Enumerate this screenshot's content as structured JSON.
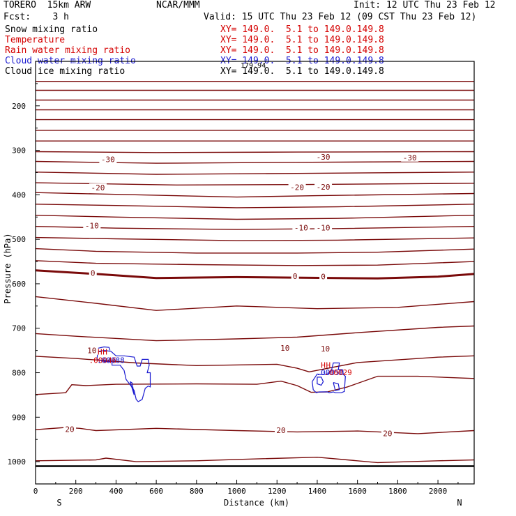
{
  "header": {
    "model": "TORERO  15km ARW",
    "center": "NCAR/MMM",
    "init": "Init: 12 UTC Thu 23 Feb 12",
    "fcst": "Fcst:    3 h",
    "valid": "Valid: 15 UTC Thu 23 Feb 12 (09 CST Thu 23 Feb 12)"
  },
  "fields": [
    {
      "name": "Snow mixing ratio",
      "xy": "XY= 149.0.  5.1 to 149.0.149.8",
      "color": "#000000"
    },
    {
      "name": "Temperature",
      "xy": "XY= 149.0.  5.1 to 149.0.149.8",
      "color": "#d40000"
    },
    {
      "name": "Rain water mixing ratio",
      "xy": "XY= 149.0.  5.1 to 149.0.149.8",
      "color": "#d40000"
    },
    {
      "name": "Cloud water mixing ratio",
      "xy": "XY= 149.0.  5.1 to 149.0.149.8",
      "color": "#1a1ad0"
    },
    {
      "name": "Cloud ice mixing ratio",
      "xy": "XY= 149.0.  5.1 to 149.0.149.8",
      "color": "#000000"
    }
  ],
  "colors": {
    "temperature": "#7a0a0a",
    "cloud_water": "#1a1ad0",
    "rain_water": "#d40000",
    "axes": "#000000"
  },
  "chart_data": {
    "type": "line",
    "xlabel": "Distance (km)",
    "ylabel": "Pressure (hPa)",
    "xlim": [
      0,
      2180
    ],
    "ylim": [
      1050,
      100
    ],
    "x_ticks": [
      0,
      200,
      400,
      600,
      800,
      1000,
      1200,
      1400,
      1600,
      1800,
      2000
    ],
    "y_ticks": [
      200,
      300,
      400,
      500,
      600,
      700,
      800,
      900,
      1000
    ],
    "x_end_labels": {
      "left": "S",
      "right": "N"
    },
    "overlap_text": "179.94",
    "isotherm_interval_c": 2,
    "isotherm_labels": [
      {
        "text": "-30",
        "x": 360,
        "p": 320
      },
      {
        "text": "-30",
        "x": 1430,
        "p": 315
      },
      {
        "text": "-30",
        "x": 1860,
        "p": 316
      },
      {
        "text": "-20",
        "x": 310,
        "p": 384
      },
      {
        "text": "-20",
        "x": 1300,
        "p": 383
      },
      {
        "text": "-20",
        "x": 1430,
        "p": 382
      },
      {
        "text": "-10",
        "x": 280,
        "p": 469
      },
      {
        "text": "-10",
        "x": 1320,
        "p": 474
      },
      {
        "text": "-10",
        "x": 1430,
        "p": 474
      },
      {
        "text": "0",
        "x": 285,
        "p": 576
      },
      {
        "text": "0",
        "x": 1290,
        "p": 583
      },
      {
        "text": "0",
        "x": 1430,
        "p": 584
      },
      {
        "text": "10",
        "x": 280,
        "p": 750
      },
      {
        "text": "10",
        "x": 1240,
        "p": 744
      },
      {
        "text": "10",
        "x": 1440,
        "p": 746
      },
      {
        "text": "20",
        "x": 170,
        "p": 927
      },
      {
        "text": "20",
        "x": 1220,
        "p": 929
      },
      {
        "text": "20",
        "x": 1750,
        "p": 936
      }
    ],
    "isotherms": [
      {
        "x": [
          0,
          2180
        ],
        "p": [
          145,
          145
        ]
      },
      {
        "x": [
          0,
          2180
        ],
        "p": [
          165,
          165
        ]
      },
      {
        "x": [
          0,
          2180
        ],
        "p": [
          187,
          187
        ]
      },
      {
        "x": [
          0,
          2180
        ],
        "p": [
          209,
          209
        ]
      },
      {
        "x": [
          0,
          2180
        ],
        "p": [
          231,
          231
        ]
      },
      {
        "x": [
          0,
          2180
        ],
        "p": [
          255,
          255
        ]
      },
      {
        "x": [
          0,
          2180
        ],
        "p": [
          279,
          279
        ]
      },
      {
        "x": [
          0,
          600,
          1300,
          2180
        ],
        "p": [
          303,
          305,
          304,
          303
        ]
      },
      {
        "x": [
          0,
          600,
          1300,
          2180
        ],
        "p": [
          325,
          329,
          327,
          325
        ]
      },
      {
        "x": [
          0,
          600,
          1300,
          2180
        ],
        "p": [
          349,
          354,
          352,
          349
        ]
      },
      {
        "x": [
          0,
          700,
          1300,
          2180
        ],
        "p": [
          373,
          378,
          377,
          374
        ]
      },
      {
        "x": [
          0,
          300,
          1000,
          1400,
          2180
        ],
        "p": [
          395,
          398,
          405,
          402,
          397
        ]
      },
      {
        "x": [
          0,
          400,
          1000,
          1500,
          2180
        ],
        "p": [
          421,
          424,
          429,
          427,
          421
        ]
      },
      {
        "x": [
          0,
          400,
          1000,
          1500,
          2180
        ],
        "p": [
          446,
          450,
          455,
          453,
          446
        ]
      },
      {
        "x": [
          0,
          400,
          1000,
          1500,
          2180
        ],
        "p": [
          471,
          475,
          478,
          476,
          471
        ]
      },
      {
        "x": [
          0,
          400,
          1000,
          1500,
          2180
        ],
        "p": [
          496,
          499,
          503,
          502,
          497
        ]
      },
      {
        "x": [
          0,
          300,
          800,
          1300,
          1700,
          2180
        ],
        "p": [
          521,
          527,
          531,
          531,
          529,
          522
        ]
      },
      {
        "x": [
          0,
          300,
          800,
          1300,
          1700,
          2180
        ],
        "p": [
          548,
          554,
          557,
          559,
          558,
          550
        ]
      },
      {
        "x": [
          0,
          300,
          600,
          1000,
          1500,
          1700,
          2000,
          2180
        ],
        "p": [
          570,
          578,
          587,
          585,
          587,
          588,
          584,
          578
        ],
        "bold": true
      },
      {
        "x": [
          0,
          300,
          600,
          1000,
          1400,
          1800,
          2180
        ],
        "p": [
          629,
          644,
          660,
          650,
          656,
          653,
          640
        ]
      },
      {
        "x": [
          0,
          200,
          600,
          1000,
          1300,
          1600,
          2000,
          2180
        ],
        "p": [
          712,
          718,
          728,
          724,
          720,
          710,
          698,
          695
        ]
      },
      {
        "x": [
          0,
          200,
          500,
          800,
          1200,
          1300,
          1360,
          1600,
          2000,
          2180
        ],
        "p": [
          763,
          768,
          778,
          784,
          781,
          790,
          798,
          777,
          765,
          762
        ]
      },
      {
        "x": [
          0,
          150,
          180,
          250,
          400,
          800,
          1100,
          1220,
          1300,
          1370,
          1450,
          1550,
          1700,
          1900,
          2180
        ],
        "p": [
          849,
          845,
          827,
          829,
          826,
          825,
          826,
          819,
          829,
          844,
          843,
          832,
          808,
          808,
          813
        ]
      },
      {
        "x": [
          0,
          150,
          220,
          300,
          600,
          1000,
          1300,
          1600,
          1900,
          2180
        ],
        "p": [
          928,
          923,
          925,
          930,
          925,
          930,
          933,
          931,
          937,
          930
        ]
      },
      {
        "x": [
          0,
          300,
          350,
          500,
          800,
          1000,
          1400,
          1700,
          2000,
          2180
        ],
        "p": [
          998,
          996,
          992,
          1000,
          998,
          995,
          990,
          1002,
          998,
          996
        ]
      }
    ],
    "ground_pressure_hpa": 1010,
    "cloud_water_regions": [
      {
        "x": [
          305,
          345,
          380,
          380,
          420,
          440,
          450,
          470,
          490,
          500,
          510,
          530,
          545,
          560,
          570,
          570,
          555,
          565,
          560,
          530,
          520,
          505,
          490,
          440,
          400,
          375,
          345,
          310,
          305
        ],
        "p": [
          770,
          775,
          775,
          783,
          783,
          795,
          815,
          827,
          840,
          860,
          865,
          860,
          835,
          830,
          832,
          800,
          800,
          783,
          770,
          770,
          785,
          785,
          765,
          762,
          762,
          752,
          750,
          752,
          770
        ]
      },
      {
        "x": [
          470,
          480,
          490,
          480,
          470
        ],
        "p": [
          820,
          823,
          850,
          835,
          820
        ]
      },
      {
        "x": [
          310,
          340,
          365,
          370
        ],
        "p": [
          745,
          742,
          743,
          750
        ]
      },
      {
        "x": [
          1375,
          1380,
          1395,
          1410,
          1450,
          1460,
          1480,
          1490,
          1500,
          1520,
          1535,
          1540,
          1530,
          1525,
          1505,
          1510,
          1480,
          1470,
          1450,
          1420,
          1400,
          1375
        ],
        "p": [
          820,
          838,
          845,
          843,
          843,
          845,
          843,
          845,
          845,
          845,
          842,
          808,
          804,
          793,
          793,
          778,
          778,
          796,
          803,
          804,
          803,
          820
        ]
      },
      {
        "x": [
          1400,
          1420,
          1430,
          1420,
          1400,
          1400
        ],
        "p": [
          810,
          810,
          820,
          828,
          825,
          810
        ]
      },
      {
        "x": [
          1480,
          1505,
          1510,
          1490,
          1480
        ],
        "p": [
          822,
          825,
          838,
          840,
          822
        ]
      }
    ],
    "markers": [
      {
        "text": "H",
        "x": 320,
        "p": 753,
        "color": "#d40000"
      },
      {
        "text": "H",
        "x": 345,
        "p": 753,
        "color": "#d40000"
      },
      {
        "text": "H",
        "x": 1430,
        "p": 783,
        "color": "#d40000"
      },
      {
        "text": "H",
        "x": 1455,
        "p": 783,
        "color": "#d40000"
      }
    ],
    "value_labels": [
      {
        "text": ".00046",
        "x": 265,
        "p": 772,
        "color": "#d40000"
      },
      {
        "text": ".00088",
        "x": 305,
        "p": 772,
        "color": "#1a1ad0"
      },
      {
        "text": ".00050",
        "x": 1395,
        "p": 799,
        "color": "#1a1ad0"
      },
      {
        "text": ".00029",
        "x": 1435,
        "p": 799,
        "color": "#d40000"
      }
    ]
  }
}
